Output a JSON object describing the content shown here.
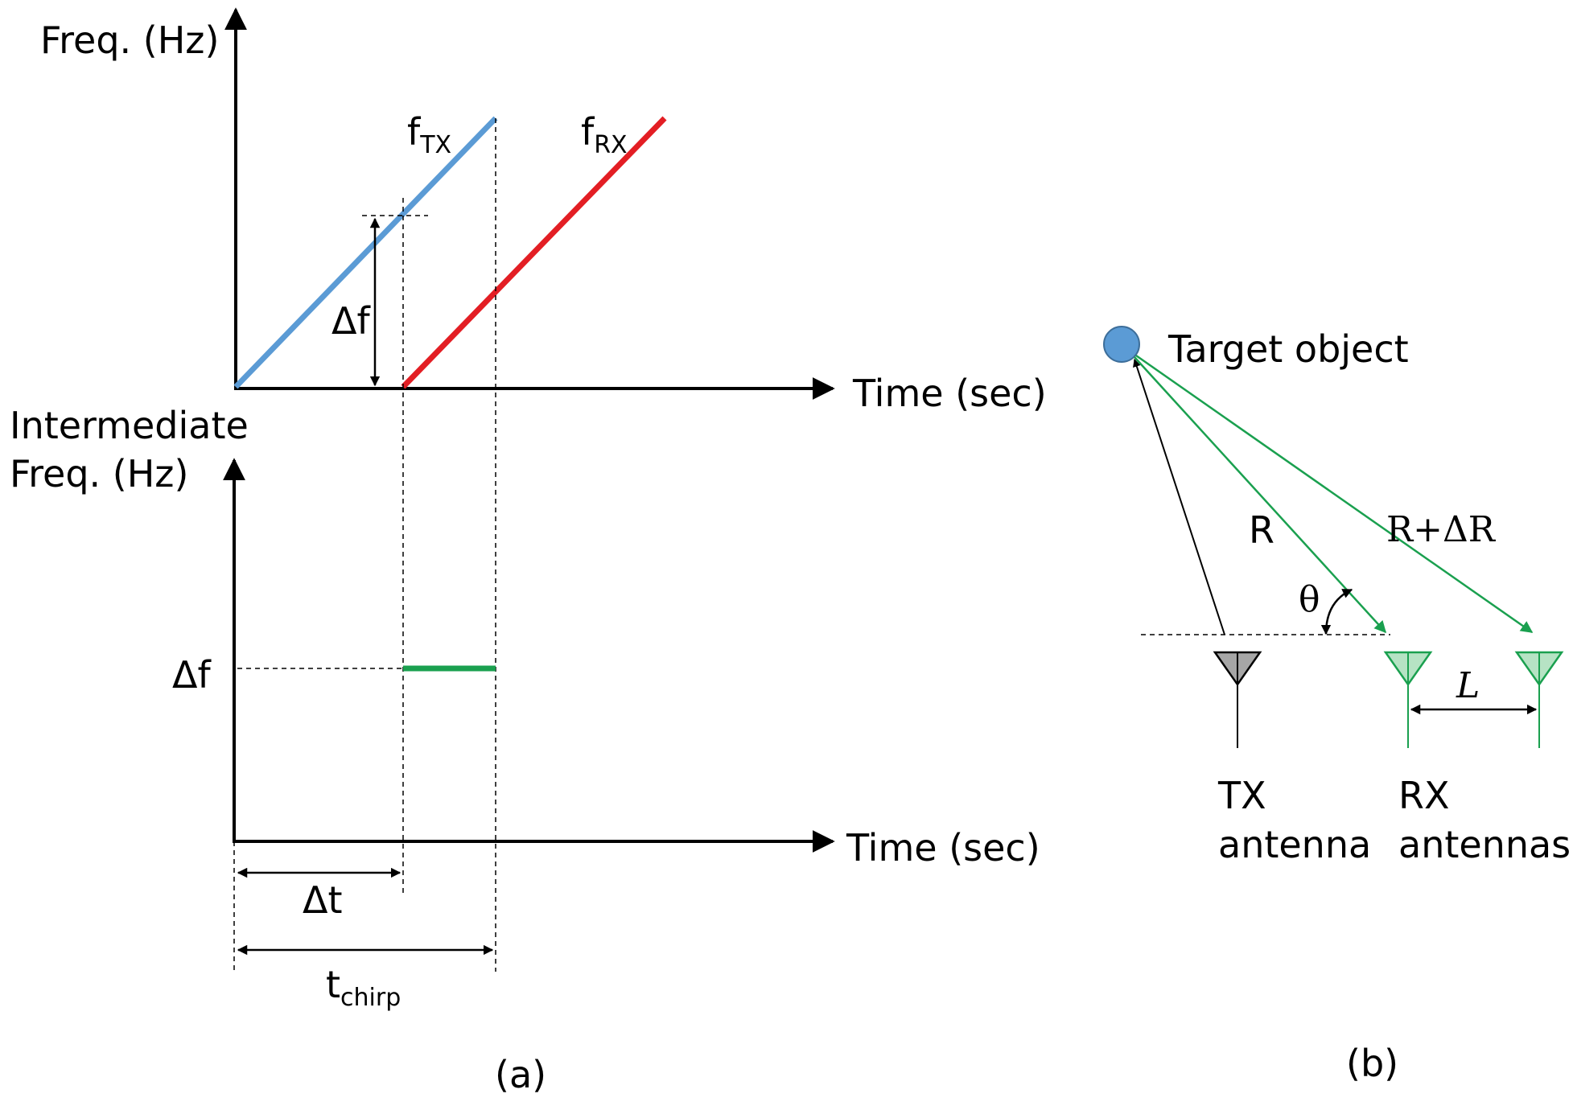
{
  "panel_a": {
    "caption": "(a)",
    "top_y_axis_label": "Freq. (Hz)",
    "top_x_axis_label": "Time (sec)",
    "bottom_y_axis_label_line1": "Intermediate",
    "bottom_y_axis_label_line2": "Freq. (Hz)",
    "bottom_x_axis_label": "Time (sec)",
    "ftx_main": "f",
    "ftx_sub": "TX",
    "frx_main": "f",
    "frx_sub": "RX",
    "delta_f_top": "Δf",
    "delta_f_bottom": "Δf",
    "delta_t": "Δt",
    "tchirp_main": "t",
    "tchirp_sub": "chirp",
    "colors": {
      "tx": "#5b9bd5",
      "rx": "#e31e24",
      "if": "#1aa04f"
    }
  },
  "panel_b": {
    "caption": "(b)",
    "target_label": "Target object",
    "r_label": "R",
    "r_delta_label": "R+ΔR",
    "theta_label": "θ",
    "l_label": "L",
    "tx_label_line1": "TX",
    "tx_label_line2": "antenna",
    "rx_label_line1": "RX",
    "rx_label_line2": "antennas",
    "colors": {
      "target": "#5b9bd5",
      "rx_path": "#1aa04f",
      "tx_antenna": "#a6a6a6",
      "rx_antenna": "#b6e3c4"
    }
  }
}
